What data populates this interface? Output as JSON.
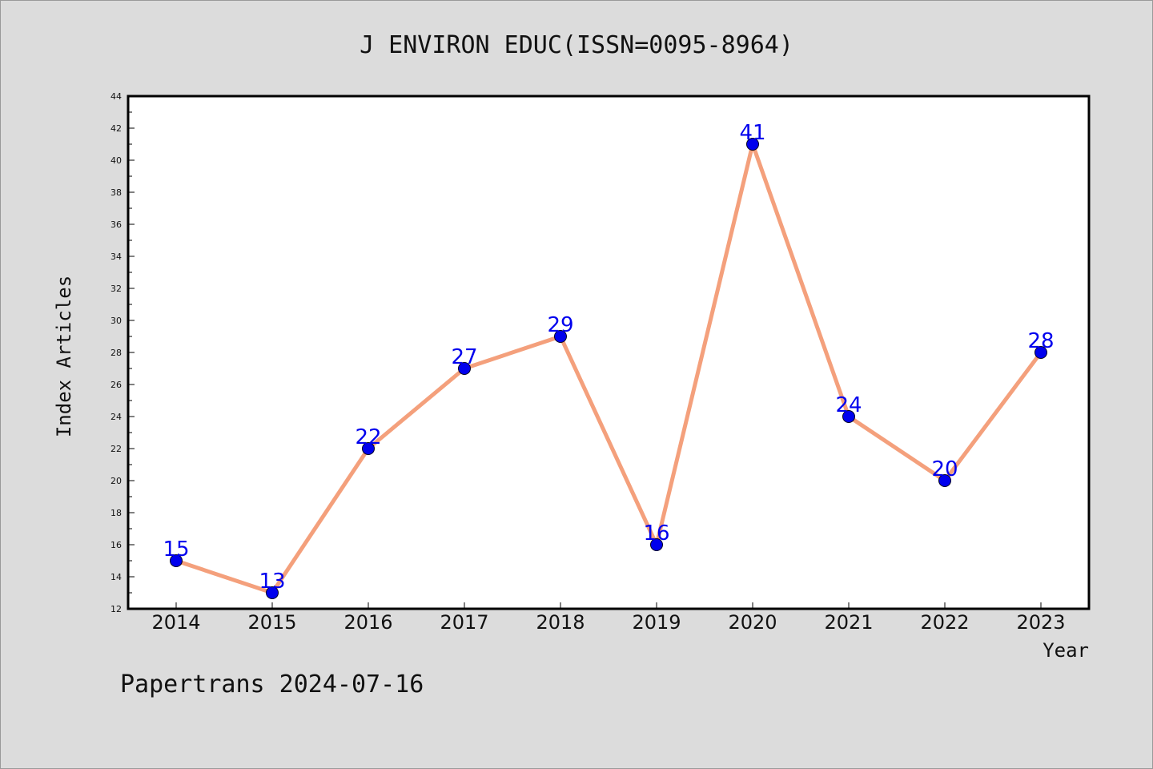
{
  "chart_data": {
    "type": "line",
    "title": "J ENVIRON EDUC(ISSN=0095-8964)",
    "xlabel": "Year",
    "ylabel": "Index Articles",
    "categories": [
      "2014",
      "2015",
      "2016",
      "2017",
      "2018",
      "2019",
      "2020",
      "2021",
      "2022",
      "2023"
    ],
    "values": [
      15,
      13,
      22,
      27,
      29,
      16,
      41,
      24,
      20,
      28
    ],
    "data_labels": [
      "15",
      "13",
      "22",
      "27",
      "29",
      "16",
      "41",
      "24",
      "20",
      "28"
    ],
    "ylim": [
      12,
      44
    ],
    "yticks": [
      "12",
      "14",
      "16",
      "18",
      "20",
      "22",
      "24",
      "26",
      "28",
      "30",
      "32",
      "34",
      "36",
      "38",
      "40",
      "42",
      "44"
    ],
    "grid": false,
    "line_color": "#f4a07c",
    "marker_color": "#0000ee",
    "label_color": "#0000ee"
  },
  "footer": "Papertrans 2024-07-16"
}
